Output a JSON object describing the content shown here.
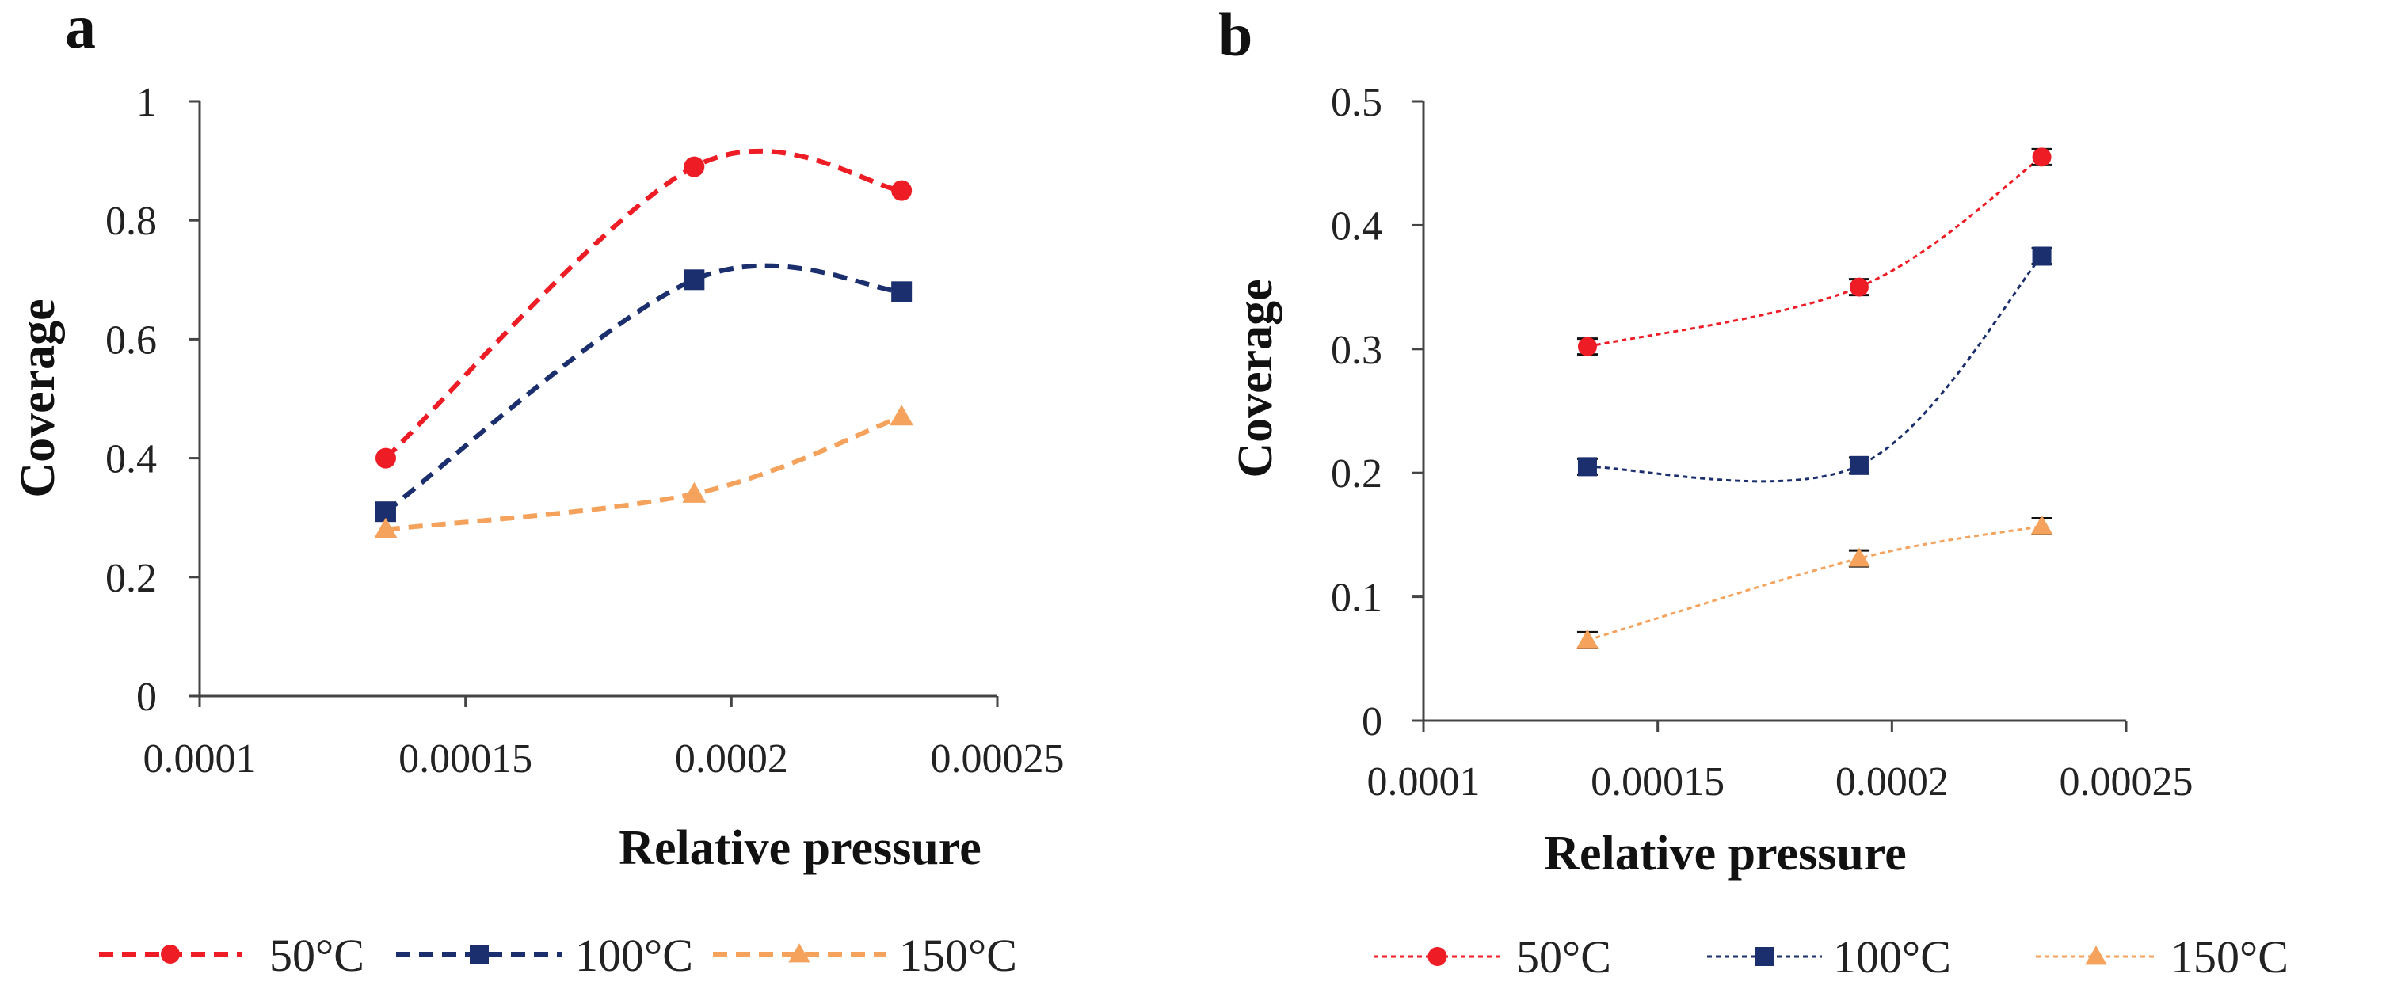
{
  "colors": {
    "red": "#ee1c25",
    "navy": "#1b2f6e",
    "orange": "#f5a25d"
  },
  "legend": [
    {
      "label": "50°C",
      "color": "#ee1c25",
      "marker": "circle"
    },
    {
      "label": "100°C",
      "color": "#1b2f6e",
      "marker": "square"
    },
    {
      "label": "150°C",
      "color": "#f5a25d",
      "marker": "triangle"
    }
  ],
  "chart_data": [
    {
      "panel": "a",
      "type": "line",
      "title": "",
      "xlabel": "Relative pressure",
      "ylabel": "Coverage",
      "xlim": [
        0.0001,
        0.00025
      ],
      "ylim": [
        0,
        1
      ],
      "xticks": [
        0.0001,
        0.00015,
        0.0002,
        0.00025
      ],
      "xtick_labels": [
        "0.0001",
        "0.00015",
        "0.0002",
        "0.00025"
      ],
      "yticks": [
        0,
        0.2,
        0.4,
        0.6,
        0.8,
        1
      ],
      "ytick_labels": [
        "0",
        "0.2",
        "0.4",
        "0.6",
        "0.8",
        "1"
      ],
      "line_style": "dashed-thick",
      "x": [
        0.000135,
        0.000193,
        0.000232
      ],
      "series": [
        {
          "name": "50°C",
          "values": [
            0.4,
            0.89,
            0.85
          ]
        },
        {
          "name": "100°C",
          "values": [
            0.31,
            0.7,
            0.68
          ]
        },
        {
          "name": "150°C",
          "values": [
            0.28,
            0.34,
            0.47
          ]
        }
      ]
    },
    {
      "panel": "b",
      "type": "line",
      "title": "",
      "xlabel": "Relative pressure",
      "ylabel": "Coverage",
      "xlim": [
        0.0001,
        0.00025
      ],
      "ylim": [
        0,
        0.5
      ],
      "xticks": [
        0.0001,
        0.00015,
        0.0002,
        0.00025
      ],
      "xtick_labels": [
        "0.0001",
        "0.00015",
        "0.0002",
        "0.00025"
      ],
      "yticks": [
        0,
        0.1,
        0.2,
        0.3,
        0.4,
        0.5
      ],
      "ytick_labels": [
        "0",
        "0.1",
        "0.2",
        "0.3",
        "0.4",
        "0.5"
      ],
      "line_style": "dotted-thin",
      "error_bars": true,
      "x": [
        0.000135,
        0.000193,
        0.000232
      ],
      "series": [
        {
          "name": "50°C",
          "values": [
            0.302,
            0.35,
            0.455
          ]
        },
        {
          "name": "100°C",
          "values": [
            0.205,
            0.206,
            0.375
          ]
        },
        {
          "name": "150°C",
          "values": [
            0.065,
            0.131,
            0.157
          ]
        }
      ]
    }
  ]
}
